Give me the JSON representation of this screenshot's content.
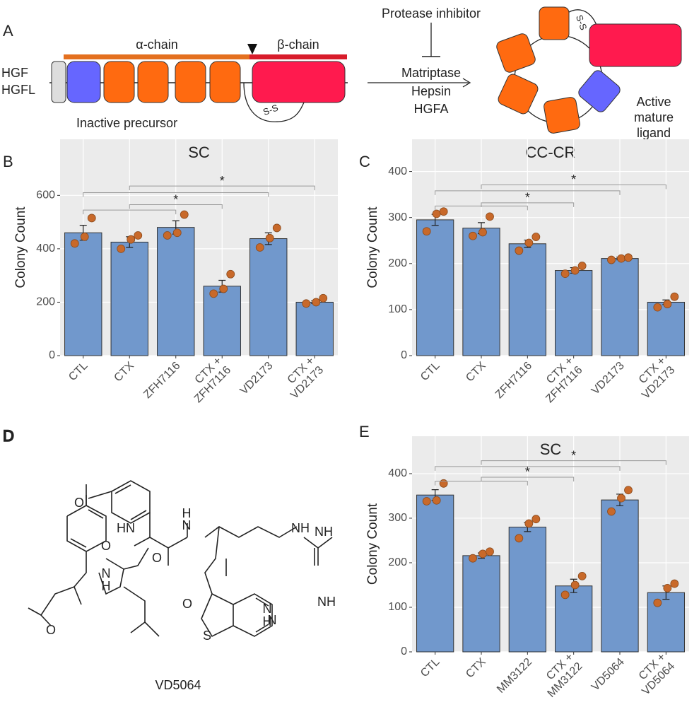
{
  "panel_a": {
    "letter": "A",
    "alpha_chain": "α-chain",
    "beta_chain": "β-chain",
    "ligands": [
      "HGF",
      "HGFL"
    ],
    "precursor": "Inactive precursor",
    "bond": "S-S",
    "inhibitor": "Protease inhibitor",
    "proteases": [
      "Matriptase",
      "Hepsin",
      "HGFA"
    ],
    "mature": [
      "Active",
      "mature",
      "ligand"
    ]
  },
  "panel_d": {
    "letter": "D",
    "atoms": [
      "O",
      "HN",
      "O",
      "O",
      "H",
      "N",
      "H",
      "N",
      "NH",
      "O",
      "S",
      "N",
      "NH",
      "N",
      "H",
      "NH",
      "O"
    ],
    "compound": "VD5064"
  },
  "chart_data": [
    {
      "type": "bar",
      "panel": "B",
      "title": "SC",
      "y_label": "Colony Count",
      "categories": [
        "CTL",
        "CTX",
        "ZFH7116",
        "CTX + ZFH7116",
        "VD2173",
        "CTX + VD2173"
      ],
      "values": [
        460,
        425,
        480,
        260,
        438,
        200
      ],
      "errors": [
        28,
        20,
        25,
        22,
        22,
        5
      ],
      "points": [
        [
          420,
          445,
          515
        ],
        [
          400,
          435,
          450
        ],
        [
          450,
          460,
          528
        ],
        [
          232,
          250,
          305
        ],
        [
          405,
          440,
          478
        ],
        [
          195,
          200,
          215
        ]
      ],
      "annotations": [
        "*",
        "*"
      ],
      "color": "#7198cc",
      "point_color": "#c8692a",
      "ylim": [
        0,
        810
      ],
      "yticks": [
        0,
        200,
        400,
        600
      ],
      "grid": true
    },
    {
      "type": "bar",
      "panel": "C",
      "title": "CC-CR",
      "y_label": "Colony Count",
      "categories": [
        "CTL",
        "CTX",
        "ZFH7116",
        "CTX + ZFH7116",
        "VD2173",
        "CTX + VD2173"
      ],
      "values": [
        295,
        277,
        243,
        185,
        211,
        116
      ],
      "errors": [
        12,
        12,
        8,
        6,
        3,
        5
      ],
      "points": [
        [
          270,
          308,
          313
        ],
        [
          260,
          268,
          302
        ],
        [
          228,
          245,
          258
        ],
        [
          178,
          185,
          195
        ],
        [
          208,
          211,
          213
        ],
        [
          105,
          112,
          128
        ]
      ],
      "annotations": [
        "*",
        "*"
      ],
      "color": "#7198cc",
      "point_color": "#c8692a",
      "ylim": [
        0,
        470
      ],
      "yticks": [
        0,
        100,
        200,
        300,
        400
      ],
      "grid": true
    },
    {
      "type": "bar",
      "panel": "E",
      "title": "SC",
      "y_label": "Colony Count",
      "categories": [
        "CTL",
        "CTX",
        "MM3122",
        "CTX + MM3122",
        "VD5064",
        "CTX + VD5064"
      ],
      "values": [
        352,
        216,
        280,
        148,
        341,
        133
      ],
      "errors": [
        12,
        6,
        10,
        15,
        13,
        15
      ],
      "points": [
        [
          338,
          340,
          378
        ],
        [
          210,
          220,
          225
        ],
        [
          255,
          288,
          298
        ],
        [
          128,
          150,
          170
        ],
        [
          315,
          345,
          363
        ],
        [
          110,
          143,
          153
        ]
      ],
      "annotations": [
        "*",
        "*"
      ],
      "color": "#7198cc",
      "point_color": "#c8692a",
      "ylim": [
        0,
        484
      ],
      "yticks": [
        0,
        100,
        200,
        300,
        400
      ],
      "grid": true
    }
  ]
}
